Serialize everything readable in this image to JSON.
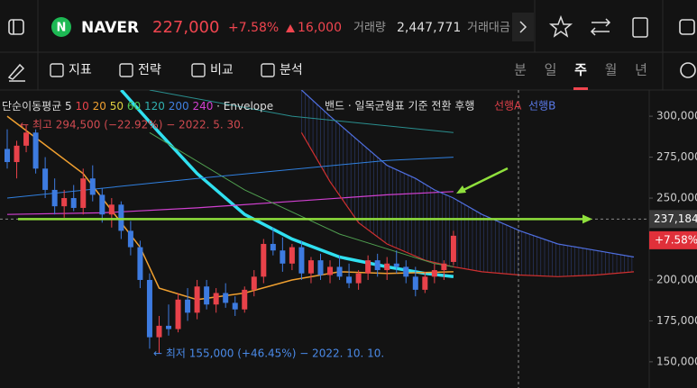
{
  "header": {
    "symbol": "NAVER",
    "price": "227,000",
    "change_pct": "+7.58%",
    "change": "16,000",
    "volume_label": "거래량",
    "volume": "2,447,771",
    "amount_label": "거래대금"
  },
  "toolbar": {
    "tools": [
      "지표",
      "전략",
      "비교",
      "분석"
    ],
    "periods": [
      "분",
      "일",
      "주",
      "월",
      "년"
    ],
    "selected_period": 2
  },
  "legend": {
    "prefix": "단순이동평균 5",
    "items": [
      {
        "text": "10",
        "color": "#e8424a"
      },
      {
        "text": "20",
        "color": "#f0a030"
      },
      {
        "text": "50",
        "color": "#e0d040"
      },
      {
        "text": "60",
        "color": "#50c050"
      },
      {
        "text": "120",
        "color": "#30b0b0"
      },
      {
        "text": "200",
        "color": "#4080e0"
      },
      {
        "text": "240",
        "color": "#d040d0"
      }
    ],
    "envelope": "· Envelope",
    "ichimoku": "밴드 · 일목균형표 기준 전환 후행",
    "span_a": "선행A",
    "span_b": "선행B"
  },
  "chart_data": {
    "type": "candlestick",
    "high_note": "← 최고 294,500 (−22.92%) − 2022. 5. 30.",
    "low_note": "← 최저 155,000 (+46.45%) − 2022. 10. 10.",
    "ylim": [
      134000,
      316000
    ],
    "yticks": [
      {
        "value": 150000,
        "label": "150,000"
      },
      {
        "value": 175000,
        "label": "175,000"
      },
      {
        "value": 200000,
        "label": "200,000"
      },
      {
        "value": 250000,
        "label": "250,000"
      },
      {
        "value": 275000,
        "label": "275,000"
      },
      {
        "value": 300000,
        "label": "300,000"
      }
    ],
    "cursor": {
      "value": 237184,
      "label": "237,184"
    },
    "last_change": "+7.58%",
    "up_color": "#e8424a",
    "down_color": "#3d7be0",
    "candles": [
      [
        280000,
        292000,
        268000,
        272000
      ],
      [
        272000,
        285000,
        262000,
        282000
      ],
      [
        282000,
        294500,
        278000,
        290000
      ],
      [
        290000,
        292000,
        265000,
        268000
      ],
      [
        268000,
        275000,
        250000,
        255000
      ],
      [
        255000,
        262000,
        240000,
        245000
      ],
      [
        245000,
        255000,
        238000,
        250000
      ],
      [
        250000,
        258000,
        242000,
        244000
      ],
      [
        244000,
        268000,
        240000,
        262000
      ],
      [
        262000,
        270000,
        248000,
        252000
      ],
      [
        252000,
        256000,
        235000,
        240000
      ],
      [
        240000,
        250000,
        232000,
        246000
      ],
      [
        246000,
        248000,
        225000,
        230000
      ],
      [
        230000,
        236000,
        215000,
        220000
      ],
      [
        220000,
        224000,
        195000,
        200000
      ],
      [
        200000,
        204000,
        158000,
        165000
      ],
      [
        165000,
        178000,
        155000,
        172000
      ],
      [
        172000,
        185000,
        166000,
        170000
      ],
      [
        170000,
        192000,
        168000,
        188000
      ],
      [
        188000,
        195000,
        175000,
        180000
      ],
      [
        180000,
        200000,
        176000,
        196000
      ],
      [
        196000,
        200000,
        182000,
        185000
      ],
      [
        185000,
        195000,
        180000,
        192000
      ],
      [
        192000,
        198000,
        183000,
        186000
      ],
      [
        186000,
        190000,
        178000,
        182000
      ],
      [
        182000,
        196000,
        180000,
        194000
      ],
      [
        194000,
        206000,
        190000,
        202000
      ],
      [
        202000,
        225000,
        198000,
        222000
      ],
      [
        222000,
        232000,
        215000,
        218000
      ],
      [
        218000,
        226000,
        205000,
        210000
      ],
      [
        210000,
        222000,
        206000,
        220000
      ],
      [
        220000,
        224000,
        200000,
        204000
      ],
      [
        204000,
        214000,
        198000,
        212000
      ],
      [
        212000,
        216000,
        200000,
        203000
      ],
      [
        203000,
        212000,
        198000,
        208000
      ],
      [
        208000,
        215000,
        200000,
        202000
      ],
      [
        202000,
        210000,
        195000,
        198000
      ],
      [
        198000,
        206000,
        194000,
        204000
      ],
      [
        204000,
        215000,
        200000,
        212000
      ],
      [
        212000,
        216000,
        202000,
        206000
      ],
      [
        206000,
        214000,
        200000,
        210000
      ],
      [
        210000,
        218000,
        204000,
        208000
      ],
      [
        208000,
        212000,
        198000,
        202000
      ],
      [
        202000,
        208000,
        190000,
        194000
      ],
      [
        194000,
        205000,
        192000,
        202000
      ],
      [
        202000,
        210000,
        198000,
        206000
      ],
      [
        206000,
        212000,
        200000,
        210000
      ],
      [
        211000,
        230000,
        209000,
        227000
      ]
    ],
    "series": [
      {
        "color": "#30e0f0",
        "width": 3.5,
        "x": [
          12,
          16,
          20,
          25,
          30,
          35,
          40,
          44,
          47
        ],
        "values": [
          316000,
          290000,
          265000,
          240000,
          225000,
          214000,
          208000,
          204000,
          202000
        ]
      },
      {
        "color": "#d040d0",
        "width": 1.2,
        "x": [
          0,
          10,
          20,
          30,
          40,
          47
        ],
        "values": [
          240000,
          241000,
          244000,
          248000,
          252000,
          254000
        ]
      },
      {
        "color": "#4f6fe0",
        "width": 1.2,
        "x": [
          31,
          34,
          37,
          40,
          43,
          45,
          47,
          50,
          54,
          58,
          62,
          66
        ],
        "values": [
          316000,
          300000,
          285000,
          270000,
          262000,
          255000,
          250000,
          240000,
          230000,
          222000,
          218000,
          214000
        ]
      },
      {
        "color": "#d03030",
        "width": 1.2,
        "x": [
          31,
          34,
          37,
          40,
          44,
          47,
          50,
          54,
          58,
          62,
          66
        ],
        "values": [
          290000,
          260000,
          235000,
          222000,
          212000,
          208000,
          205000,
          203000,
          202000,
          203000,
          205000
        ]
      },
      {
        "color": "#f0a030",
        "width": 1.5,
        "x": [
          0,
          8,
          14,
          16,
          20,
          25,
          30,
          35,
          40,
          47
        ],
        "values": [
          300000,
          265000,
          220000,
          195000,
          188000,
          192000,
          200000,
          205000,
          204000,
          205000
        ]
      },
      {
        "color": "#50a050",
        "width": 1,
        "x": [
          15,
          25,
          35,
          45,
          47
        ],
        "values": [
          290000,
          255000,
          228000,
          210000,
          208000
        ]
      },
      {
        "color": "#2a8f8f",
        "width": 1,
        "x": [
          15,
          30,
          47
        ],
        "values": [
          316000,
          300000,
          290000
        ]
      },
      {
        "color": "#3080e0",
        "width": 1,
        "x": [
          0,
          20,
          40,
          47
        ],
        "values": [
          250000,
          262000,
          273000,
          275000
        ]
      }
    ]
  }
}
